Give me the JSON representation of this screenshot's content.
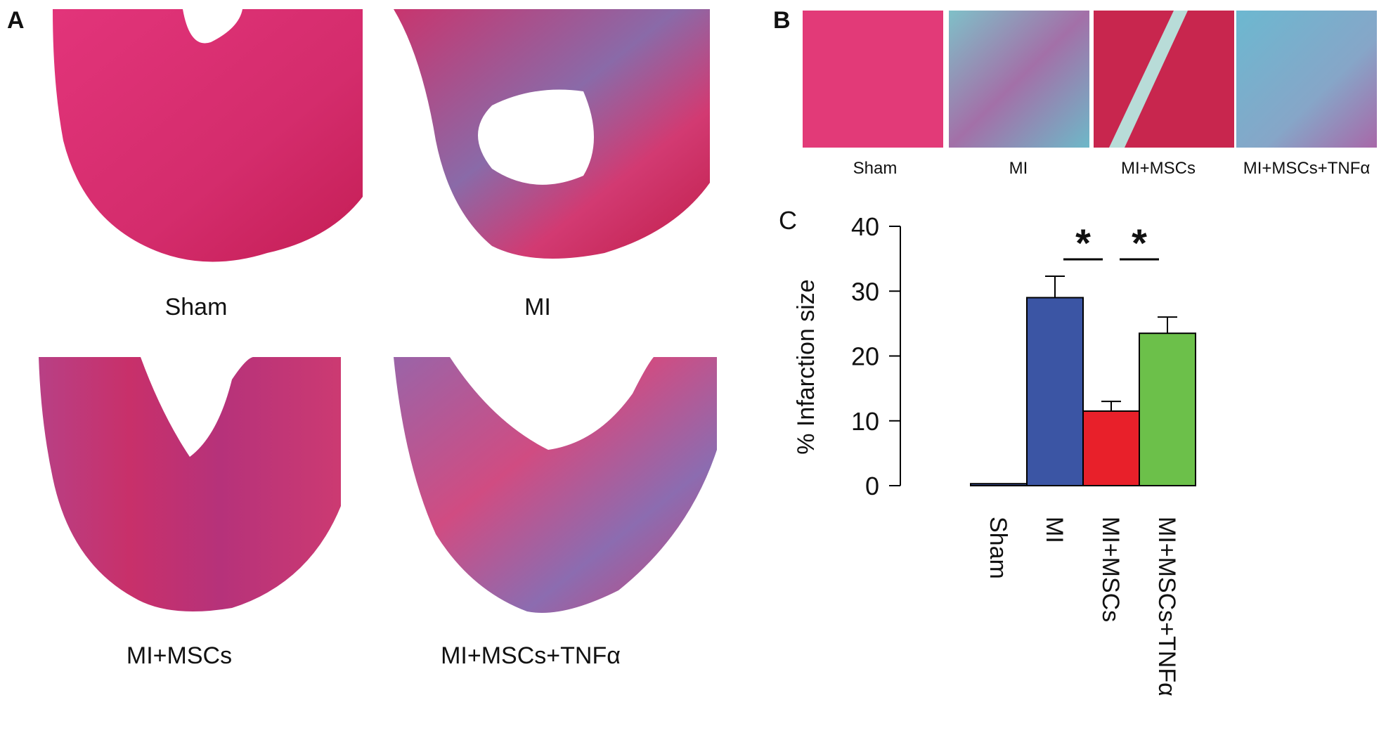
{
  "panel_a": {
    "label": "A",
    "images": [
      "Sham",
      "MI",
      "MI+MSCs",
      "MI+MSCs+TNFα"
    ]
  },
  "panel_b": {
    "label": "B",
    "images": [
      "Sham",
      "MI",
      "MI+MSCs",
      "MI+MSCs+TNFα"
    ]
  },
  "chart_data": {
    "type": "bar",
    "panel_label": "C",
    "ylabel": "% Infarction size",
    "categories": [
      "Sham",
      "MI",
      "MI+MSCs",
      "MI+MSCs+TNFα"
    ],
    "values": [
      0.3,
      29,
      11.5,
      23.5
    ],
    "errors": [
      0,
      3.3,
      1.5,
      2.5
    ],
    "colors": [
      "#3b55a4",
      "#3b55a4",
      "#e8202a",
      "#6cc04a"
    ],
    "ylim": [
      0,
      40
    ],
    "yticks": [
      0,
      10,
      20,
      30,
      40
    ],
    "annotations": [
      "*",
      "*"
    ]
  }
}
